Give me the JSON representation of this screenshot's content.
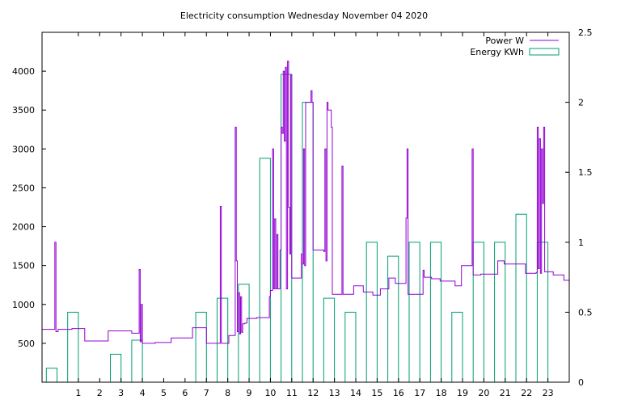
{
  "chart_data": {
    "type": "line",
    "title": "Electricity consumption Wednesday November 04 2020",
    "xlabel": "",
    "ylabel": "",
    "y2label": "",
    "grid": false,
    "legend_position": "top-right",
    "xlim": [
      -0.7,
      24.0
    ],
    "ylim": [
      0,
      4500
    ],
    "y2lim": [
      0,
      2.5
    ],
    "x_ticks": [
      1,
      2,
      3,
      4,
      5,
      6,
      7,
      8,
      9,
      10,
      11,
      12,
      13,
      14,
      15,
      16,
      17,
      18,
      19,
      20,
      21,
      22,
      23
    ],
    "y_ticks": [
      500,
      1000,
      1500,
      2000,
      2500,
      3000,
      3500,
      4000
    ],
    "y2_ticks": [
      0,
      0.5,
      1,
      1.5,
      2,
      2.5
    ],
    "y2_tick_labels": [
      "0",
      "0.5",
      "1",
      "1.5",
      "2",
      "2.5"
    ],
    "series": [
      {
        "name": "Power W",
        "color": "#9400d3",
        "axis": "y",
        "style": "steps",
        "points": [
          [
            -0.7,
            680
          ],
          [
            -0.15,
            680
          ],
          [
            -0.1,
            1800
          ],
          [
            -0.05,
            650
          ],
          [
            0.05,
            680
          ],
          [
            0.7,
            690
          ],
          [
            1.0,
            690
          ],
          [
            1.25,
            690
          ],
          [
            1.3,
            530
          ],
          [
            2.0,
            530
          ],
          [
            2.35,
            530
          ],
          [
            2.4,
            660
          ],
          [
            2.9,
            660
          ],
          [
            3.45,
            660
          ],
          [
            3.5,
            630
          ],
          [
            3.8,
            630
          ],
          [
            3.85,
            1450
          ],
          [
            3.9,
            520
          ],
          [
            3.95,
            1000
          ],
          [
            4.0,
            500
          ],
          [
            4.6,
            510
          ],
          [
            5.3,
            510
          ],
          [
            5.35,
            570
          ],
          [
            6.3,
            570
          ],
          [
            6.35,
            700
          ],
          [
            6.95,
            700
          ],
          [
            7.0,
            500
          ],
          [
            7.6,
            500
          ],
          [
            7.65,
            2260
          ],
          [
            7.7,
            500
          ],
          [
            7.95,
            500
          ],
          [
            8.0,
            500
          ],
          [
            8.05,
            600
          ],
          [
            8.3,
            600
          ],
          [
            8.35,
            3280
          ],
          [
            8.4,
            1560
          ],
          [
            8.45,
            650
          ],
          [
            8.5,
            1150
          ],
          [
            8.55,
            620
          ],
          [
            8.6,
            1100
          ],
          [
            8.65,
            640
          ],
          [
            8.7,
            750
          ],
          [
            8.8,
            760
          ],
          [
            8.85,
            760
          ],
          [
            8.9,
            820
          ],
          [
            9.3,
            820
          ],
          [
            9.35,
            830
          ],
          [
            9.9,
            830
          ],
          [
            9.95,
            1100
          ],
          [
            10.0,
            1180
          ],
          [
            10.1,
            3000
          ],
          [
            10.15,
            1200
          ],
          [
            10.2,
            2100
          ],
          [
            10.25,
            1200
          ],
          [
            10.3,
            1900
          ],
          [
            10.35,
            1200
          ],
          [
            10.45,
            1700
          ],
          [
            10.5,
            3280
          ],
          [
            10.55,
            3200
          ],
          [
            10.6,
            4000
          ],
          [
            10.65,
            3100
          ],
          [
            10.7,
            4050
          ],
          [
            10.75,
            1200
          ],
          [
            10.8,
            4130
          ],
          [
            10.85,
            2250
          ],
          [
            10.9,
            1650
          ],
          [
            10.95,
            3950
          ],
          [
            11.0,
            1340
          ],
          [
            11.4,
            1340
          ],
          [
            11.45,
            1650
          ],
          [
            11.5,
            1520
          ],
          [
            11.55,
            3000
          ],
          [
            11.6,
            1500
          ],
          [
            11.65,
            3600
          ],
          [
            11.8,
            3600
          ],
          [
            11.9,
            3750
          ],
          [
            11.95,
            3600
          ],
          [
            12.0,
            1700
          ],
          [
            12.45,
            1700
          ],
          [
            12.5,
            1680
          ],
          [
            12.55,
            3000
          ],
          [
            12.6,
            1560
          ],
          [
            12.65,
            3600
          ],
          [
            12.7,
            3500
          ],
          [
            12.85,
            3280
          ],
          [
            12.9,
            1130
          ],
          [
            13.1,
            1130
          ],
          [
            13.3,
            1130
          ],
          [
            13.35,
            2780
          ],
          [
            13.4,
            1130
          ],
          [
            13.85,
            1130
          ],
          [
            13.9,
            1240
          ],
          [
            14.3,
            1240
          ],
          [
            14.35,
            1160
          ],
          [
            14.75,
            1160
          ],
          [
            14.8,
            1120
          ],
          [
            15.1,
            1120
          ],
          [
            15.15,
            1200
          ],
          [
            15.5,
            1200
          ],
          [
            15.55,
            1340
          ],
          [
            15.8,
            1340
          ],
          [
            15.85,
            1270
          ],
          [
            16.3,
            1270
          ],
          [
            16.35,
            2110
          ],
          [
            16.4,
            3000
          ],
          [
            16.45,
            1130
          ],
          [
            17.1,
            1130
          ],
          [
            17.15,
            1440
          ],
          [
            17.2,
            1350
          ],
          [
            17.5,
            1350
          ],
          [
            17.55,
            1330
          ],
          [
            17.9,
            1330
          ],
          [
            17.95,
            1300
          ],
          [
            18.6,
            1300
          ],
          [
            18.65,
            1240
          ],
          [
            18.9,
            1240
          ],
          [
            18.95,
            1500
          ],
          [
            19.4,
            1500
          ],
          [
            19.45,
            3000
          ],
          [
            19.5,
            1380
          ],
          [
            19.8,
            1380
          ],
          [
            19.85,
            1390
          ],
          [
            20.6,
            1390
          ],
          [
            20.65,
            1560
          ],
          [
            20.9,
            1560
          ],
          [
            20.95,
            1520
          ],
          [
            21.9,
            1520
          ],
          [
            21.95,
            1400
          ],
          [
            22.4,
            1400
          ],
          [
            22.45,
            1410
          ],
          [
            22.5,
            3280
          ],
          [
            22.55,
            1460
          ],
          [
            22.6,
            3130
          ],
          [
            22.65,
            1400
          ],
          [
            22.7,
            3000
          ],
          [
            22.75,
            2300
          ],
          [
            22.8,
            3280
          ],
          [
            22.85,
            1420
          ],
          [
            23.2,
            1420
          ],
          [
            23.25,
            1380
          ],
          [
            23.7,
            1380
          ],
          [
            23.75,
            1310
          ],
          [
            24.0,
            1310
          ]
        ]
      },
      {
        "name": "Energy KWh",
        "color": "#009e73",
        "axis": "y2",
        "style": "boxes",
        "x": [
          -0.5,
          0.5,
          2.5,
          3.5,
          6.5,
          7.5,
          8.5,
          9.5,
          10.5,
          11.5,
          12.5,
          13.5,
          14.5,
          15.5,
          16.5,
          17.5,
          18.5,
          19.5,
          20.5,
          21.5,
          22.5
        ],
        "values": [
          0.1,
          0.5,
          0.2,
          0.3,
          0.5,
          0.6,
          0.7,
          1.6,
          2.2,
          2.0,
          0.6,
          0.5,
          1.0,
          0.9,
          1.0,
          1.0,
          0.5,
          1.0,
          1.0,
          1.2,
          1.0
        ]
      }
    ]
  }
}
